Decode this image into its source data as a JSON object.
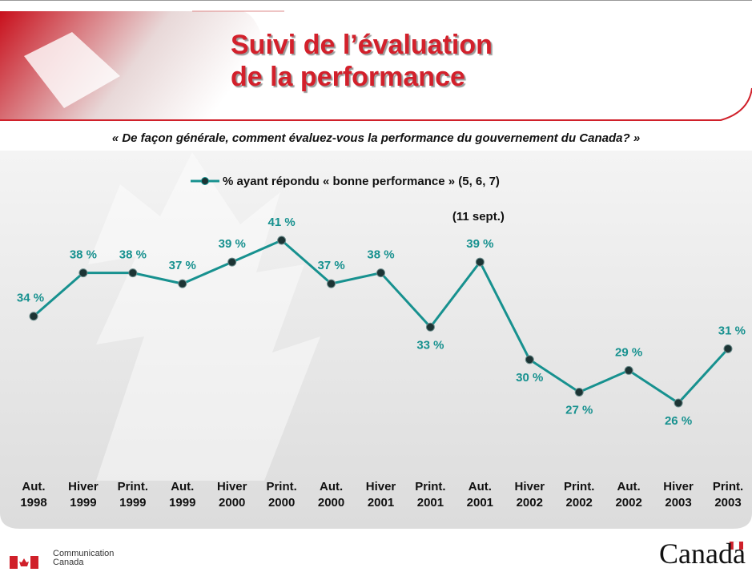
{
  "chart_data": {
    "type": "line",
    "title": "Suivi de l’évaluation de la performance",
    "subtitle": "« De façon générale, comment évaluez-vous la performance du gouvernement du Canada? »",
    "annotation": "(11 sept.)",
    "categories": [
      "Aut. 1998",
      "Hiver 1999",
      "Print. 1999",
      "Aut. 1999",
      "Hiver 2000",
      "Print. 2000",
      "Aut. 2000",
      "Hiver 2001",
      "Print. 2001",
      "Aut. 2001",
      "Hiver 2002",
      "Print. 2002",
      "Aut. 2002",
      "Hiver 2003",
      "Print. 2003"
    ],
    "series": [
      {
        "name": "% ayant répondu  « bonne performance » (5, 6, 7)",
        "color": "#17918f",
        "values": [
          34,
          38,
          38,
          37,
          39,
          41,
          37,
          38,
          33,
          39,
          30,
          27,
          29,
          26,
          31
        ],
        "value_labels": [
          "34 %",
          "38 %",
          "38 %",
          "37 %",
          "39 %",
          "41 %",
          "37 %",
          "38 %",
          "33 %",
          "39 %",
          "30 %",
          "27 %",
          "29 %",
          "26 %",
          "31 %"
        ]
      }
    ]
  },
  "footer": {
    "department": "Communication Canada",
    "wordmark": "Canada"
  }
}
